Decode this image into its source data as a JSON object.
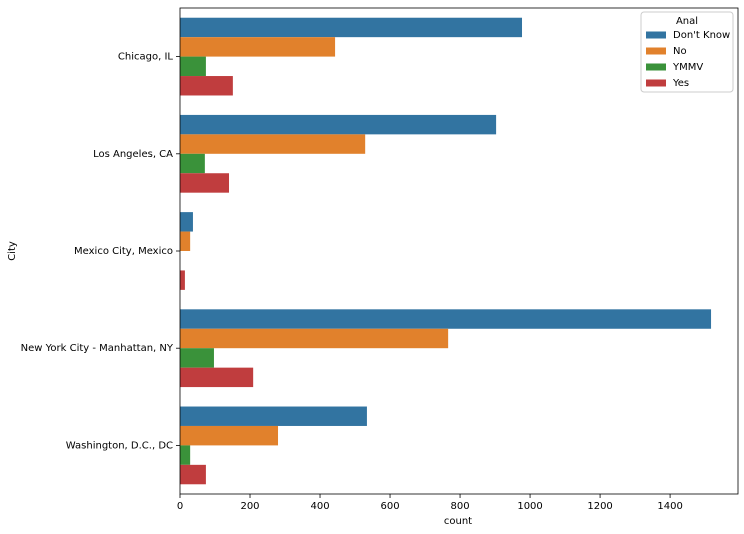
{
  "chart_data": {
    "type": "barh",
    "xlabel": "count",
    "ylabel": "City",
    "categories": [
      "Chicago, IL",
      "Los Angeles, CA",
      "Mexico City, Mexico",
      "New York City - Manhattan, NY",
      "Washington, D.C., DC"
    ],
    "legend_title": "Anal",
    "legend_position": "upper right",
    "series": [
      {
        "name": "Don't Know",
        "color": "#3274a1",
        "values": [
          977,
          903,
          37,
          1517,
          534
        ]
      },
      {
        "name": "No",
        "color": "#e1812c",
        "values": [
          443,
          529,
          29,
          766,
          280
        ]
      },
      {
        "name": "YMMV",
        "color": "#3a923a",
        "values": [
          74,
          71,
          null,
          97,
          29
        ]
      },
      {
        "name": "Yes",
        "color": "#c03d3e",
        "values": [
          151,
          140,
          14,
          209,
          74
        ]
      }
    ],
    "xlim": [
      0,
      1594
    ],
    "xticks": [
      0,
      200,
      400,
      600,
      800,
      1000,
      1200,
      1400
    ]
  }
}
